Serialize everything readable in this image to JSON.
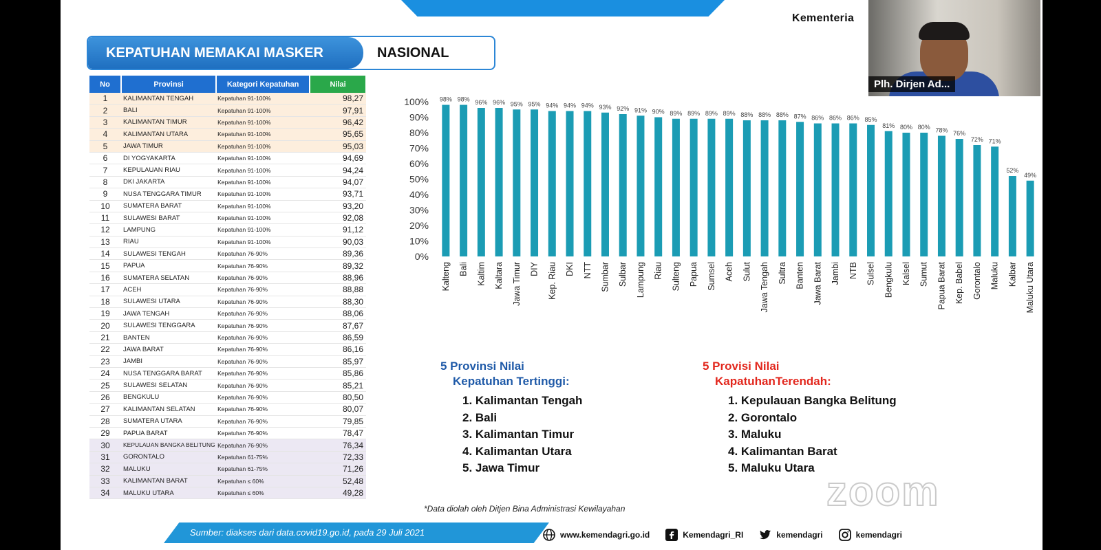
{
  "window": {
    "ministry": "Kementeria",
    "video_label": "Plh. Dirjen Ad..."
  },
  "slide": {
    "title": "KEPATUHAN MEMAKAI MASKER",
    "subtitle": "NASIONAL",
    "headers": [
      "No",
      "Provinsi",
      "Kategori Kepatuhan",
      "Nilai"
    ],
    "rows": [
      {
        "no": "1",
        "prov": "KALIMANTAN TENGAH",
        "kat": "Kepatuhan 91-100%",
        "val": "98,27"
      },
      {
        "no": "2",
        "prov": "BALI",
        "kat": "Kepatuhan 91-100%",
        "val": "97,91"
      },
      {
        "no": "3",
        "prov": "KALIMANTAN TIMUR",
        "kat": "Kepatuhan 91-100%",
        "val": "96,42"
      },
      {
        "no": "4",
        "prov": "KALIMANTAN UTARA",
        "kat": "Kepatuhan 91-100%",
        "val": "95,65"
      },
      {
        "no": "5",
        "prov": "JAWA TIMUR",
        "kat": "Kepatuhan 91-100%",
        "val": "95,03"
      },
      {
        "no": "6",
        "prov": "DI YOGYAKARTA",
        "kat": "Kepatuhan 91-100%",
        "val": "94,69"
      },
      {
        "no": "7",
        "prov": "KEPULAUAN RIAU",
        "kat": "Kepatuhan 91-100%",
        "val": "94,24"
      },
      {
        "no": "8",
        "prov": "DKI JAKARTA",
        "kat": "Kepatuhan 91-100%",
        "val": "94,07"
      },
      {
        "no": "9",
        "prov": "NUSA TENGGARA TIMUR",
        "kat": "Kepatuhan 91-100%",
        "val": "93,71"
      },
      {
        "no": "10",
        "prov": "SUMATERA BARAT",
        "kat": "Kepatuhan 91-100%",
        "val": "93,20"
      },
      {
        "no": "11",
        "prov": "SULAWESI BARAT",
        "kat": "Kepatuhan 91-100%",
        "val": "92,08"
      },
      {
        "no": "12",
        "prov": "LAMPUNG",
        "kat": "Kepatuhan 91-100%",
        "val": "91,12"
      },
      {
        "no": "13",
        "prov": "RIAU",
        "kat": "Kepatuhan 91-100%",
        "val": "90,03"
      },
      {
        "no": "14",
        "prov": "SULAWESI TENGAH",
        "kat": "Kepatuhan 76-90%",
        "val": "89,36"
      },
      {
        "no": "15",
        "prov": "PAPUA",
        "kat": "Kepatuhan 76-90%",
        "val": "89,32"
      },
      {
        "no": "16",
        "prov": "SUMATERA SELATAN",
        "kat": "Kepatuhan 76-90%",
        "val": "88,96"
      },
      {
        "no": "17",
        "prov": "ACEH",
        "kat": "Kepatuhan 76-90%",
        "val": "88,88"
      },
      {
        "no": "18",
        "prov": "SULAWESI UTARA",
        "kat": "Kepatuhan 76-90%",
        "val": "88,30"
      },
      {
        "no": "19",
        "prov": "JAWA TENGAH",
        "kat": "Kepatuhan 76-90%",
        "val": "88,06"
      },
      {
        "no": "20",
        "prov": "SULAWESI TENGGARA",
        "kat": "Kepatuhan 76-90%",
        "val": "87,67"
      },
      {
        "no": "21",
        "prov": "BANTEN",
        "kat": "Kepatuhan 76-90%",
        "val": "86,59"
      },
      {
        "no": "22",
        "prov": "JAWA BARAT",
        "kat": "Kepatuhan 76-90%",
        "val": "86,16"
      },
      {
        "no": "23",
        "prov": "JAMBI",
        "kat": "Kepatuhan 76-90%",
        "val": "85,97"
      },
      {
        "no": "24",
        "prov": "NUSA TENGGARA BARAT",
        "kat": "Kepatuhan 76-90%",
        "val": "85,86"
      },
      {
        "no": "25",
        "prov": "SULAWESI SELATAN",
        "kat": "Kepatuhan 76-90%",
        "val": "85,21"
      },
      {
        "no": "26",
        "prov": "BENGKULU",
        "kat": "Kepatuhan 76-90%",
        "val": "80,50"
      },
      {
        "no": "27",
        "prov": "KALIMANTAN SELATAN",
        "kat": "Kepatuhan 76-90%",
        "val": "80,07"
      },
      {
        "no": "28",
        "prov": "SUMATERA UTARA",
        "kat": "Kepatuhan 76-90%",
        "val": "79,85"
      },
      {
        "no": "29",
        "prov": "PAPUA BARAT",
        "kat": "Kepatuhan 76-90%",
        "val": "78,47"
      },
      {
        "no": "30",
        "prov": "KEPULAUAN BANGKA BELITUNG",
        "kat": "Kepatuhan 76-90%",
        "val": "76,34"
      },
      {
        "no": "31",
        "prov": "GORONTALO",
        "kat": "Kepatuhan 61-75%",
        "val": "72,33"
      },
      {
        "no": "32",
        "prov": "MALUKU",
        "kat": "Kepatuhan 61-75%",
        "val": "71,26"
      },
      {
        "no": "33",
        "prov": "KALIMANTAN BARAT",
        "kat": "Kepatuhan ≤ 60%",
        "val": "52,48"
      },
      {
        "no": "34",
        "prov": "MALUKU UTARA",
        "kat": "Kepatuhan ≤ 60%",
        "val": "49,28"
      }
    ],
    "top_title_1": "5 Provinsi Nilai",
    "top_title_2": "Kepatuhan Tertinggi:",
    "top_list": [
      "1. Kalimantan Tengah",
      "2. Bali",
      "3. Kalimantan Timur",
      "4. Kalimantan Utara",
      "5. Jawa Timur"
    ],
    "bottom_title_1": "5 Provisi Nilai",
    "bottom_title_2": "KapatuhanTerendah:",
    "bottom_list": [
      "1. Kepulauan Bangka Belitung",
      "2. Gorontalo",
      "3. Maluku",
      "4. Kalimantan Barat",
      "5. Maluku Utara"
    ],
    "note": "*Data diolah oleh Ditjen Bina Administrasi Kewilayahan",
    "source": "Sumber:  diakses dari data.covid19.go.id, pada 29 Juli 2021",
    "social": {
      "web": "www.kemendagri.go.id",
      "facebook": "Kemendagri_RI",
      "twitter": "kemendagri",
      "instagram": "kemendagri"
    },
    "watermark": "zoom",
    "colors": {
      "bar": "#1b9cb4",
      "title_blue": "#1f6fc0",
      "nilai_green": "#2aa84a",
      "top_highlight": "#fdeedd",
      "bottom_highlight": "#ece8f3"
    }
  },
  "chart_data": {
    "type": "bar",
    "categories": [
      "Kalteng",
      "Bali",
      "Kaltim",
      "Kaltara",
      "Jawa Timur",
      "DIY",
      "Kep. Riau",
      "DKI",
      "NTT",
      "Sumbar",
      "Sulbar",
      "Lampung",
      "Riau",
      "Sulteng",
      "Papua",
      "Sumsel",
      "Aceh",
      "Sulut",
      "Jawa Tengah",
      "Sultra",
      "Banten",
      "Jawa Barat",
      "Jambi",
      "NTB",
      "Sulsel",
      "Bengkulu",
      "Kalsel",
      "Sumut",
      "Papua Barat",
      "Kep. Babel",
      "Gorontalo",
      "Maluku",
      "Kalbar",
      "Maluku Utara"
    ],
    "values": [
      98,
      98,
      96,
      96,
      95,
      95,
      94,
      94,
      94,
      93,
      92,
      91,
      90,
      89,
      89,
      89,
      89,
      88,
      88,
      88,
      87,
      86,
      86,
      86,
      85,
      81,
      80,
      80,
      78,
      76,
      72,
      71,
      52,
      49
    ],
    "data_labels": [
      "98%",
      "98%",
      "96%",
      "96%",
      "95%",
      "95%",
      "94%",
      "94%",
      "94%",
      "93%",
      "92%",
      "91%",
      "90%",
      "89%",
      "89%",
      "89%",
      "89%",
      "88%",
      "88%",
      "88%",
      "87%",
      "86%",
      "86%",
      "86%",
      "85%",
      "81%",
      "80%",
      "80%",
      "78%",
      "76%",
      "72%",
      "71%",
      "52%",
      "49%"
    ],
    "y_ticks": [
      "0%",
      "10%",
      "20%",
      "30%",
      "40%",
      "50%",
      "60%",
      "70%",
      "80%",
      "90%",
      "100%"
    ],
    "ylim": [
      0,
      100
    ],
    "grid": false
  }
}
